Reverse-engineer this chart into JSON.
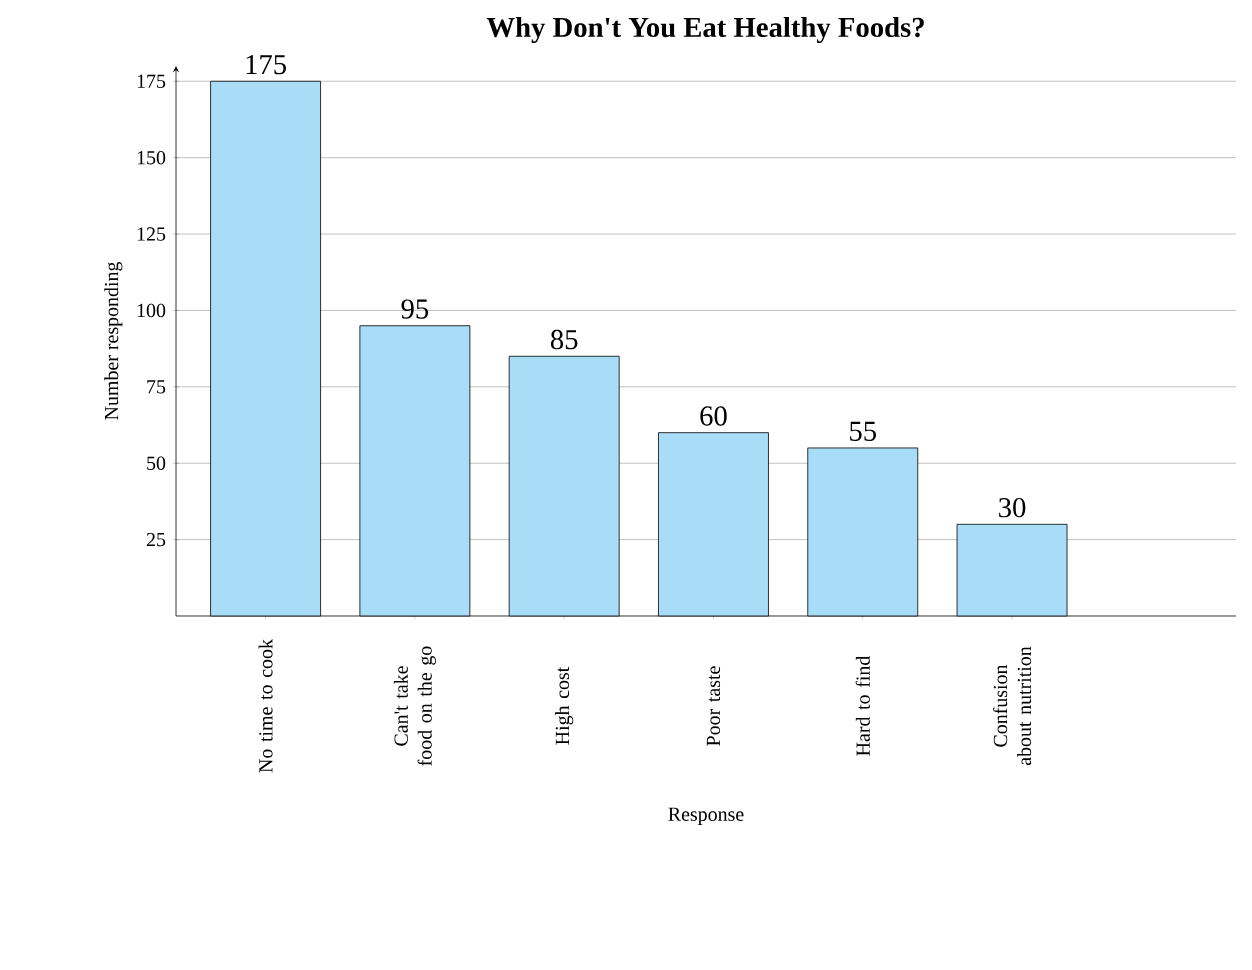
{
  "chart_data": {
    "type": "bar",
    "title": "Why Don't You Eat Healthy Foods?",
    "xlabel": "Response",
    "ylabel": "Number responding",
    "categories": [
      "No time to cook",
      "Can't take food on the go",
      "High cost",
      "Poor taste",
      "Hard to find",
      "Confusion about nutrition"
    ],
    "values": [
      175,
      95,
      85,
      60,
      55,
      30
    ],
    "color": "#a9dcf6",
    "data_labels": true,
    "ylim": [
      0,
      180
    ],
    "yticks": [
      25,
      50,
      75,
      100,
      125,
      150,
      175
    ],
    "grid": "y"
  }
}
